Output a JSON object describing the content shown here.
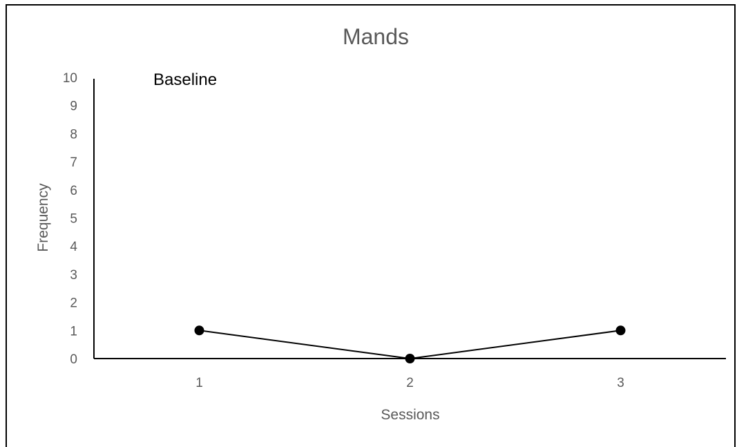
{
  "chart_data": {
    "type": "line",
    "title": "Mands",
    "xlabel": "Sessions",
    "ylabel": "Frequency",
    "x": [
      1,
      2,
      3
    ],
    "series": [
      {
        "values": [
          1,
          0,
          1
        ]
      }
    ],
    "ylim": [
      0,
      10
    ],
    "yticks": [
      0,
      1,
      2,
      3,
      4,
      5,
      6,
      7,
      8,
      9,
      10
    ],
    "xticks": [
      1,
      2,
      3
    ],
    "annotations": [
      {
        "text": "Baseline"
      }
    ],
    "grid": false,
    "legend": "none",
    "colors": {
      "line": "#000000",
      "marker": "#000000",
      "axis": "#000000",
      "text": "#595959"
    }
  }
}
